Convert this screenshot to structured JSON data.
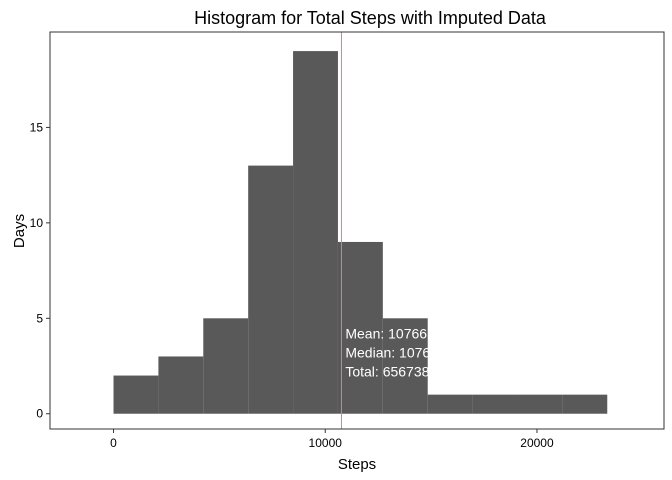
{
  "chart_data": {
    "type": "bar",
    "title": "Histogram for Total Steps with Imputed Data",
    "xlabel": "Steps",
    "ylabel": "Days",
    "xlim": [
      -3000,
      26000
    ],
    "ylim": [
      -0.8,
      20.0
    ],
    "grid": false,
    "x_ticks": [
      0,
      10000,
      20000
    ],
    "x_tick_labels": [
      "0",
      "10000",
      "20000"
    ],
    "y_ticks": [
      0,
      5,
      10,
      15
    ],
    "y_tick_labels": [
      "0",
      "5",
      "10",
      "15"
    ],
    "bins": [
      {
        "x0": 0,
        "x1": 2120,
        "count": 2
      },
      {
        "x0": 2120,
        "x1": 4240,
        "count": 3
      },
      {
        "x0": 4240,
        "x1": 6360,
        "count": 5
      },
      {
        "x0": 6360,
        "x1": 8480,
        "count": 13
      },
      {
        "x0": 8480,
        "x1": 10600,
        "count": 19
      },
      {
        "x0": 10600,
        "x1": 12720,
        "count": 9
      },
      {
        "x0": 12720,
        "x1": 14840,
        "count": 5
      },
      {
        "x0": 14840,
        "x1": 16960,
        "count": 1
      },
      {
        "x0": 16960,
        "x1": 19080,
        "count": 1
      },
      {
        "x0": 19080,
        "x1": 21200,
        "count": 1
      },
      {
        "x0": 21200,
        "x1": 23320,
        "count": 1
      }
    ],
    "bar_color": "#595959",
    "mean_line": {
      "value": 10766,
      "color": "#F8766D"
    },
    "annotations": [
      {
        "text": "Mean: 10766",
        "x": 10950,
        "y": 4.2
      },
      {
        "text": "Median: 10766",
        "x": 10950,
        "y": 3.2
      },
      {
        "text": "Total: 656738",
        "x": 10950,
        "y": 2.2
      }
    ]
  }
}
